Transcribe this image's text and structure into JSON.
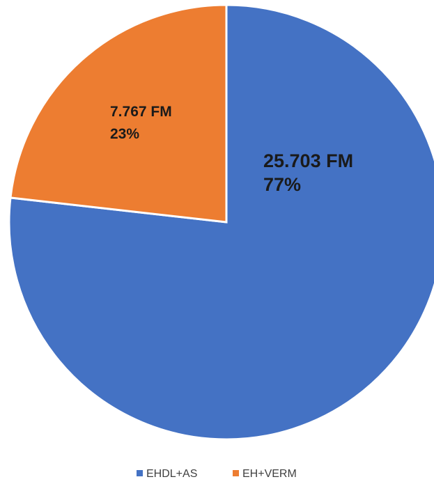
{
  "chart_data": {
    "type": "pie",
    "series": [
      {
        "name": "EHDL+AS",
        "value": 25703,
        "value_label": "25.703 FM",
        "percent_label": "77%",
        "color": "#4472C4"
      },
      {
        "name": "EH+VERM",
        "value": 7767,
        "value_label": "7.767 FM",
        "percent_label": "23%",
        "color": "#ED7D31"
      }
    ],
    "start_angle_deg": 0,
    "direction": "clockwise",
    "legend": {
      "position": "bottom",
      "entries": [
        "EHDL+AS",
        "EH+VERM"
      ]
    }
  }
}
